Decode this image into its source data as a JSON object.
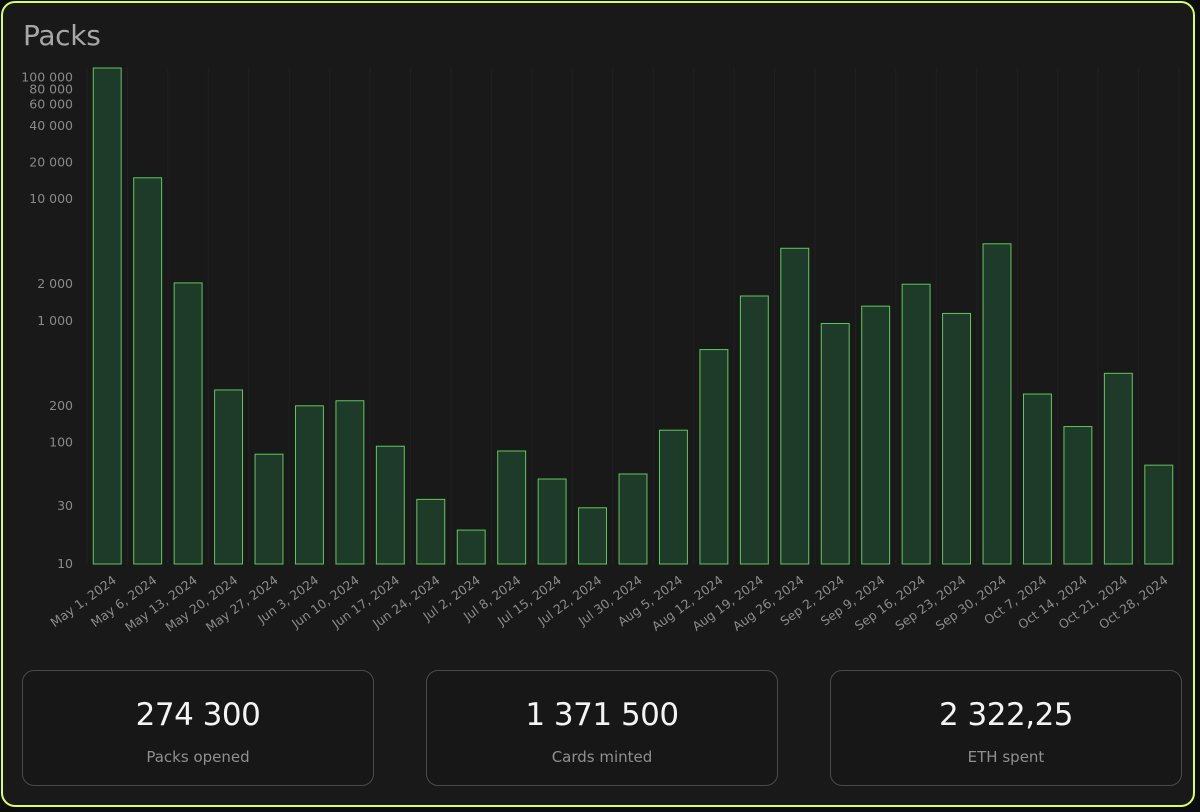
{
  "title": "Packs",
  "chart_data": {
    "type": "bar",
    "title": "Packs",
    "xlabel": "",
    "ylabel": "",
    "yscale": "log",
    "ylim": [
      10,
      120000
    ],
    "grid": true,
    "legend": "none",
    "bar_fill_color": "#1e3a28",
    "bar_stroke_color": "#5fc85a",
    "yticks": [
      10,
      30,
      100,
      200,
      1000,
      2000,
      10000,
      20000,
      40000,
      60000,
      80000,
      100000
    ],
    "ytick_labels": [
      "10",
      "30",
      "100",
      "200",
      "1 000",
      "2 000",
      "10 000",
      "20 000",
      "40 000",
      "60 000",
      "80 000",
      "100 000"
    ],
    "categories": [
      "May 1, 2024",
      "May 6, 2024",
      "May 13, 2024",
      "May 20, 2024",
      "May 27, 2024",
      "Jun 3, 2024",
      "Jun 10, 2024",
      "Jun 17, 2024",
      "Jun 24, 2024",
      "Jul 2, 2024",
      "Jul 8, 2024",
      "Jul 15, 2024",
      "Jul 22, 2024",
      "Jul 30, 2024",
      "Aug 5, 2024",
      "Aug 12, 2024",
      "Aug 19, 2024",
      "Aug 26, 2024",
      "Sep 2, 2024",
      "Sep 9, 2024",
      "Sep 16, 2024",
      "Sep 23, 2024",
      "Sep 30, 2024",
      "Oct 7, 2024",
      "Oct 14, 2024",
      "Oct 21, 2024",
      "Oct 28, 2024"
    ],
    "values": [
      120000,
      15000,
      2050,
      270,
      80,
      200,
      220,
      93,
      34,
      19,
      85,
      50,
      29,
      55,
      126,
      580,
      1600,
      3950,
      950,
      1320,
      2000,
      1150,
      4300,
      250,
      135,
      370,
      65
    ]
  },
  "stats": [
    {
      "value": "274 300",
      "label": "Packs opened"
    },
    {
      "value": "1 371 500",
      "label": "Cards minted"
    },
    {
      "value": "2 322,25",
      "label": "ETH spent"
    }
  ],
  "colors": {
    "border_accent": "#d8ff5c",
    "background": "#191919",
    "bar_fill": "#1e3a28",
    "bar_stroke": "#5fc85a"
  }
}
